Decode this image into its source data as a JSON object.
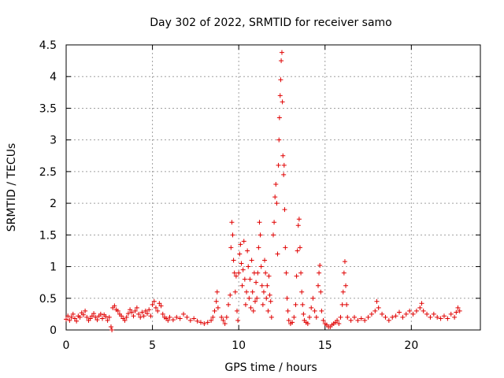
{
  "chart_data": {
    "type": "scatter",
    "title": "Day 302 of 2022, SRMTID for receiver samo",
    "xlabel": "GPS time / hours",
    "ylabel": "SRMTID / TECUs",
    "xlim": [
      0,
      24
    ],
    "ylim": [
      0,
      4.5
    ],
    "xticks": [
      0,
      5,
      10,
      15,
      20
    ],
    "yticks": [
      0,
      0.5,
      1,
      1.5,
      2,
      2.5,
      3,
      3.5,
      4,
      4.5
    ],
    "xtick_labels": [
      "0",
      "5",
      "10",
      "15",
      "20"
    ],
    "ytick_labels": [
      "0",
      "0.5",
      "1",
      "1.5",
      "2",
      "2.5",
      "3",
      "3.5",
      "4",
      "4.5"
    ],
    "grid": true,
    "marker": "plus",
    "color": "#e00000",
    "series": [
      {
        "points": [
          [
            0.0,
            0.17
          ],
          [
            0.1,
            0.22
          ],
          [
            0.2,
            0.15
          ],
          [
            0.3,
            0.2
          ],
          [
            0.4,
            0.25
          ],
          [
            0.5,
            0.18
          ],
          [
            0.6,
            0.14
          ],
          [
            0.7,
            0.22
          ],
          [
            0.8,
            0.2
          ],
          [
            0.9,
            0.27
          ],
          [
            1.0,
            0.24
          ],
          [
            1.1,
            0.3
          ],
          [
            1.2,
            0.2
          ],
          [
            1.3,
            0.15
          ],
          [
            1.4,
            0.18
          ],
          [
            1.5,
            0.22
          ],
          [
            1.6,
            0.26
          ],
          [
            1.7,
            0.2
          ],
          [
            1.8,
            0.16
          ],
          [
            1.9,
            0.22
          ],
          [
            2.0,
            0.25
          ],
          [
            2.1,
            0.18
          ],
          [
            2.2,
            0.24
          ],
          [
            2.3,
            0.21
          ],
          [
            2.4,
            0.15
          ],
          [
            2.5,
            0.2
          ],
          [
            2.6,
            0.05
          ],
          [
            2.65,
            0.0
          ],
          [
            2.7,
            0.35
          ],
          [
            2.8,
            0.38
          ],
          [
            2.9,
            0.32
          ],
          [
            3.0,
            0.3
          ],
          [
            3.1,
            0.25
          ],
          [
            3.2,
            0.22
          ],
          [
            3.3,
            0.18
          ],
          [
            3.4,
            0.15
          ],
          [
            3.5,
            0.2
          ],
          [
            3.6,
            0.26
          ],
          [
            3.7,
            0.32
          ],
          [
            3.8,
            0.28
          ],
          [
            3.9,
            0.22
          ],
          [
            4.0,
            0.3
          ],
          [
            4.1,
            0.35
          ],
          [
            4.2,
            0.25
          ],
          [
            4.3,
            0.2
          ],
          [
            4.4,
            0.28
          ],
          [
            4.5,
            0.22
          ],
          [
            4.6,
            0.3
          ],
          [
            4.7,
            0.26
          ],
          [
            4.8,
            0.32
          ],
          [
            4.9,
            0.22
          ],
          [
            5.0,
            0.4
          ],
          [
            5.1,
            0.45
          ],
          [
            5.2,
            0.35
          ],
          [
            5.3,
            0.3
          ],
          [
            5.4,
            0.42
          ],
          [
            5.5,
            0.38
          ],
          [
            5.6,
            0.25
          ],
          [
            5.7,
            0.2
          ],
          [
            5.8,
            0.18
          ],
          [
            5.9,
            0.15
          ],
          [
            6.0,
            0.2
          ],
          [
            6.2,
            0.16
          ],
          [
            6.4,
            0.2
          ],
          [
            6.6,
            0.18
          ],
          [
            6.8,
            0.25
          ],
          [
            7.0,
            0.2
          ],
          [
            7.2,
            0.15
          ],
          [
            7.4,
            0.18
          ],
          [
            7.6,
            0.14
          ],
          [
            7.8,
            0.12
          ],
          [
            8.0,
            0.1
          ],
          [
            8.2,
            0.12
          ],
          [
            8.4,
            0.15
          ],
          [
            8.5,
            0.2
          ],
          [
            8.6,
            0.3
          ],
          [
            8.7,
            0.45
          ],
          [
            8.75,
            0.6
          ],
          [
            8.8,
            0.35
          ],
          [
            9.0,
            0.2
          ],
          [
            9.1,
            0.15
          ],
          [
            9.2,
            0.1
          ],
          [
            9.3,
            0.2
          ],
          [
            9.4,
            0.4
          ],
          [
            9.5,
            0.55
          ],
          [
            9.55,
            1.3
          ],
          [
            9.6,
            1.7
          ],
          [
            9.65,
            1.5
          ],
          [
            9.7,
            1.1
          ],
          [
            9.75,
            0.9
          ],
          [
            9.8,
            0.6
          ],
          [
            9.85,
            0.85
          ],
          [
            9.9,
            0.3
          ],
          [
            9.95,
            0.15
          ],
          [
            10.0,
            0.9
          ],
          [
            10.05,
            1.2
          ],
          [
            10.1,
            1.35
          ],
          [
            10.15,
            1.05
          ],
          [
            10.2,
            0.7
          ],
          [
            10.25,
            0.95
          ],
          [
            10.3,
            1.4
          ],
          [
            10.35,
            0.8
          ],
          [
            10.4,
            0.4
          ],
          [
            10.45,
            0.6
          ],
          [
            10.5,
            1.25
          ],
          [
            10.55,
            1.0
          ],
          [
            10.6,
            0.5
          ],
          [
            10.65,
            0.8
          ],
          [
            10.7,
            0.35
          ],
          [
            10.75,
            1.1
          ],
          [
            10.8,
            0.6
          ],
          [
            10.85,
            0.3
          ],
          [
            10.9,
            0.9
          ],
          [
            10.95,
            0.45
          ],
          [
            11.0,
            0.75
          ],
          [
            11.05,
            0.5
          ],
          [
            11.1,
            0.9
          ],
          [
            11.15,
            1.3
          ],
          [
            11.2,
            1.7
          ],
          [
            11.25,
            1.5
          ],
          [
            11.3,
            1.0
          ],
          [
            11.35,
            0.7
          ],
          [
            11.4,
            0.4
          ],
          [
            11.45,
            0.6
          ],
          [
            11.5,
            1.1
          ],
          [
            11.55,
            0.9
          ],
          [
            11.6,
            0.5
          ],
          [
            11.65,
            0.7
          ],
          [
            11.7,
            0.3
          ],
          [
            11.75,
            0.85
          ],
          [
            11.8,
            0.55
          ],
          [
            11.85,
            0.45
          ],
          [
            11.9,
            0.2
          ],
          [
            12.0,
            1.5
          ],
          [
            12.05,
            1.7
          ],
          [
            12.1,
            2.1
          ],
          [
            12.15,
            2.3
          ],
          [
            12.2,
            2.0
          ],
          [
            12.25,
            1.2
          ],
          [
            12.3,
            2.6
          ],
          [
            12.33,
            3.0
          ],
          [
            12.36,
            3.35
          ],
          [
            12.4,
            3.7
          ],
          [
            12.43,
            3.95
          ],
          [
            12.46,
            4.25
          ],
          [
            12.5,
            4.38
          ],
          [
            12.53,
            3.6
          ],
          [
            12.56,
            2.75
          ],
          [
            12.6,
            2.45
          ],
          [
            12.63,
            2.6
          ],
          [
            12.66,
            1.9
          ],
          [
            12.7,
            1.3
          ],
          [
            12.75,
            0.9
          ],
          [
            12.8,
            0.5
          ],
          [
            12.85,
            0.3
          ],
          [
            12.9,
            0.15
          ],
          [
            13.0,
            0.1
          ],
          [
            13.1,
            0.12
          ],
          [
            13.2,
            0.2
          ],
          [
            13.3,
            0.4
          ],
          [
            13.35,
            0.85
          ],
          [
            13.4,
            1.25
          ],
          [
            13.45,
            1.65
          ],
          [
            13.5,
            1.75
          ],
          [
            13.55,
            1.3
          ],
          [
            13.6,
            0.9
          ],
          [
            13.65,
            0.6
          ],
          [
            13.7,
            0.4
          ],
          [
            13.75,
            0.25
          ],
          [
            13.8,
            0.15
          ],
          [
            13.9,
            0.12
          ],
          [
            14.0,
            0.1
          ],
          [
            14.1,
            0.2
          ],
          [
            14.2,
            0.35
          ],
          [
            14.3,
            0.5
          ],
          [
            14.4,
            0.3
          ],
          [
            14.5,
            0.2
          ],
          [
            14.6,
            0.7
          ],
          [
            14.65,
            0.9
          ],
          [
            14.7,
            1.02
          ],
          [
            14.75,
            0.6
          ],
          [
            14.8,
            0.3
          ],
          [
            14.9,
            0.15
          ],
          [
            15.0,
            0.1
          ],
          [
            15.1,
            0.08
          ],
          [
            15.2,
            0.05
          ],
          [
            15.3,
            0.05
          ],
          [
            15.4,
            0.08
          ],
          [
            15.5,
            0.1
          ],
          [
            15.6,
            0.12
          ],
          [
            15.7,
            0.15
          ],
          [
            15.8,
            0.1
          ],
          [
            15.9,
            0.2
          ],
          [
            16.0,
            0.4
          ],
          [
            16.05,
            0.6
          ],
          [
            16.1,
            0.9
          ],
          [
            16.15,
            1.08
          ],
          [
            16.2,
            0.7
          ],
          [
            16.25,
            0.4
          ],
          [
            16.3,
            0.2
          ],
          [
            16.5,
            0.15
          ],
          [
            16.7,
            0.2
          ],
          [
            16.9,
            0.15
          ],
          [
            17.1,
            0.18
          ],
          [
            17.3,
            0.15
          ],
          [
            17.5,
            0.2
          ],
          [
            17.7,
            0.25
          ],
          [
            17.9,
            0.3
          ],
          [
            18.0,
            0.45
          ],
          [
            18.1,
            0.35
          ],
          [
            18.3,
            0.25
          ],
          [
            18.5,
            0.2
          ],
          [
            18.7,
            0.15
          ],
          [
            18.9,
            0.2
          ],
          [
            19.1,
            0.22
          ],
          [
            19.3,
            0.28
          ],
          [
            19.5,
            0.2
          ],
          [
            19.7,
            0.25
          ],
          [
            19.9,
            0.3
          ],
          [
            20.1,
            0.25
          ],
          [
            20.3,
            0.3
          ],
          [
            20.5,
            0.35
          ],
          [
            20.6,
            0.42
          ],
          [
            20.7,
            0.3
          ],
          [
            20.9,
            0.25
          ],
          [
            21.1,
            0.2
          ],
          [
            21.3,
            0.25
          ],
          [
            21.5,
            0.2
          ],
          [
            21.7,
            0.18
          ],
          [
            21.9,
            0.22
          ],
          [
            22.1,
            0.18
          ],
          [
            22.3,
            0.25
          ],
          [
            22.5,
            0.2
          ],
          [
            22.6,
            0.28
          ],
          [
            22.7,
            0.35
          ],
          [
            22.8,
            0.3
          ]
        ]
      }
    ]
  }
}
